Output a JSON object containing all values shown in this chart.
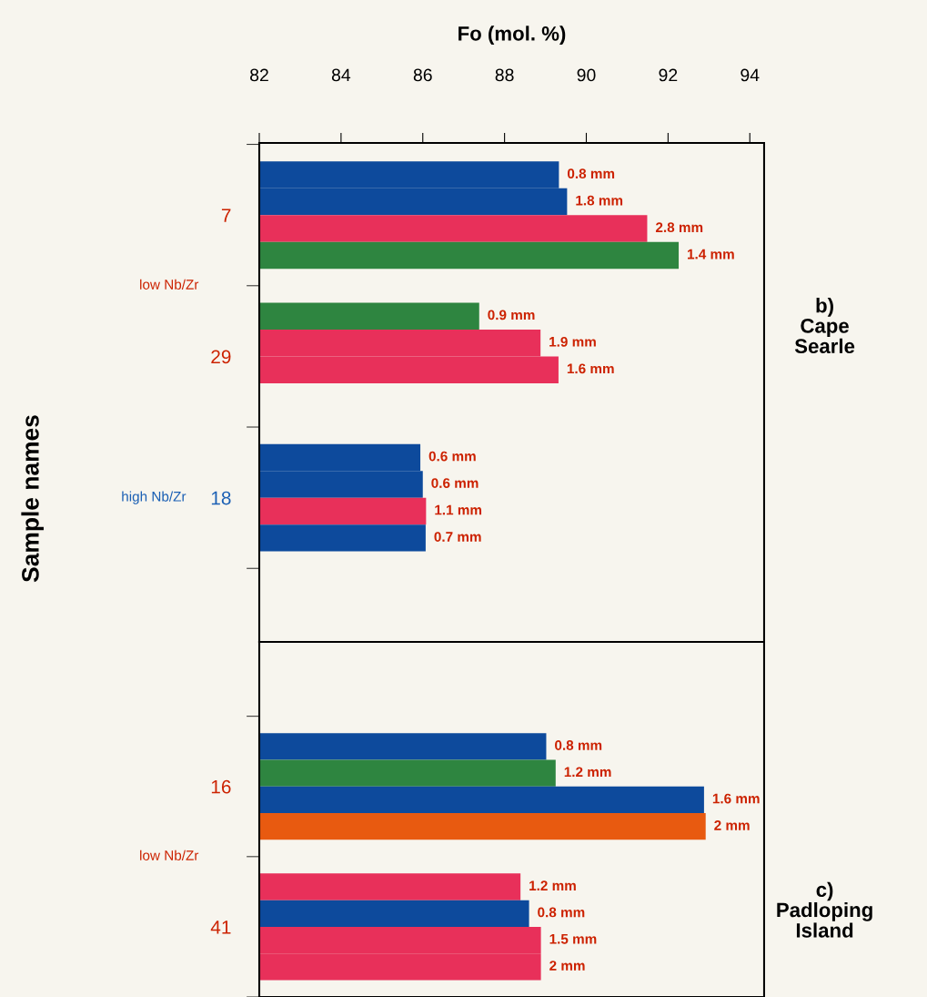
{
  "chart_data": [
    {
      "type": "bar",
      "orientation": "horizontal",
      "xlabel": "Fo (mol. %)",
      "ylabel": "Sample names",
      "categories": [
        "7",
        "29",
        "18"
      ],
      "xlim": [
        82,
        94.35
      ],
      "xticks": [
        82,
        84,
        86,
        88,
        90,
        92,
        94
      ],
      "grid": false,
      "legend": false,
      "series": [
        {
          "values": [
            89.33,
            87.38,
            85.94
          ],
          "colors": [
            "#0d4a9c",
            "#2e8540",
            "#0d4a9c"
          ]
        },
        {
          "values": [
            89.53,
            88.88,
            86.0
          ],
          "colors": [
            "#0d4a9c",
            "#e8305a",
            "#0d4a9c"
          ]
        },
        {
          "values": [
            91.49,
            89.32,
            86.08
          ],
          "colors": [
            "#e8305a",
            "#e8305a",
            "#e8305a"
          ]
        },
        {
          "values": [
            92.26,
            null,
            86.07
          ],
          "colors": [
            "#2e8540",
            "#2e8540",
            "#0d4a9c"
          ]
        }
      ],
      "annotations": [
        "0.8 mm",
        "1.8 mm",
        "2.8 mm",
        "1.4 mm",
        "0.9 mm",
        "1.9 mm",
        "1.6 mm",
        "0.6 mm",
        "0.6 mm",
        "1.1 mm",
        "0.7 mm",
        "low Nb/Zr",
        "high Nb/Zr",
        "b)\nCape\nSearle"
      ]
    },
    {
      "type": "bar",
      "orientation": "horizontal",
      "tick_labels": "y",
      "categories": [
        "16",
        "41"
      ],
      "xlim": [
        82,
        94.35
      ],
      "grid": false,
      "legend": false,
      "series": [
        {
          "values": [
            89.02,
            88.39
          ],
          "colors": [
            "#0d4a9c",
            "#e8305a"
          ]
        },
        {
          "values": [
            89.25,
            88.6
          ],
          "colors": [
            "#2e8540",
            "#0d4a9c"
          ]
        },
        {
          "values": [
            92.88,
            88.89
          ],
          "colors": [
            "#0d4a9c",
            "#e8305a"
          ]
        },
        {
          "values": [
            92.92,
            88.89
          ],
          "colors": [
            "#e85a10",
            "#e8305a"
          ]
        }
      ],
      "annotations": [
        "0.8 mm",
        "1.2 mm",
        "1.6 mm",
        "2 mm",
        "1.2 mm",
        "0.8 mm",
        "1.5 mm",
        "2 mm",
        "low Nb/Zr",
        "c)\nPadloping\nIsland"
      ]
    }
  ]
}
